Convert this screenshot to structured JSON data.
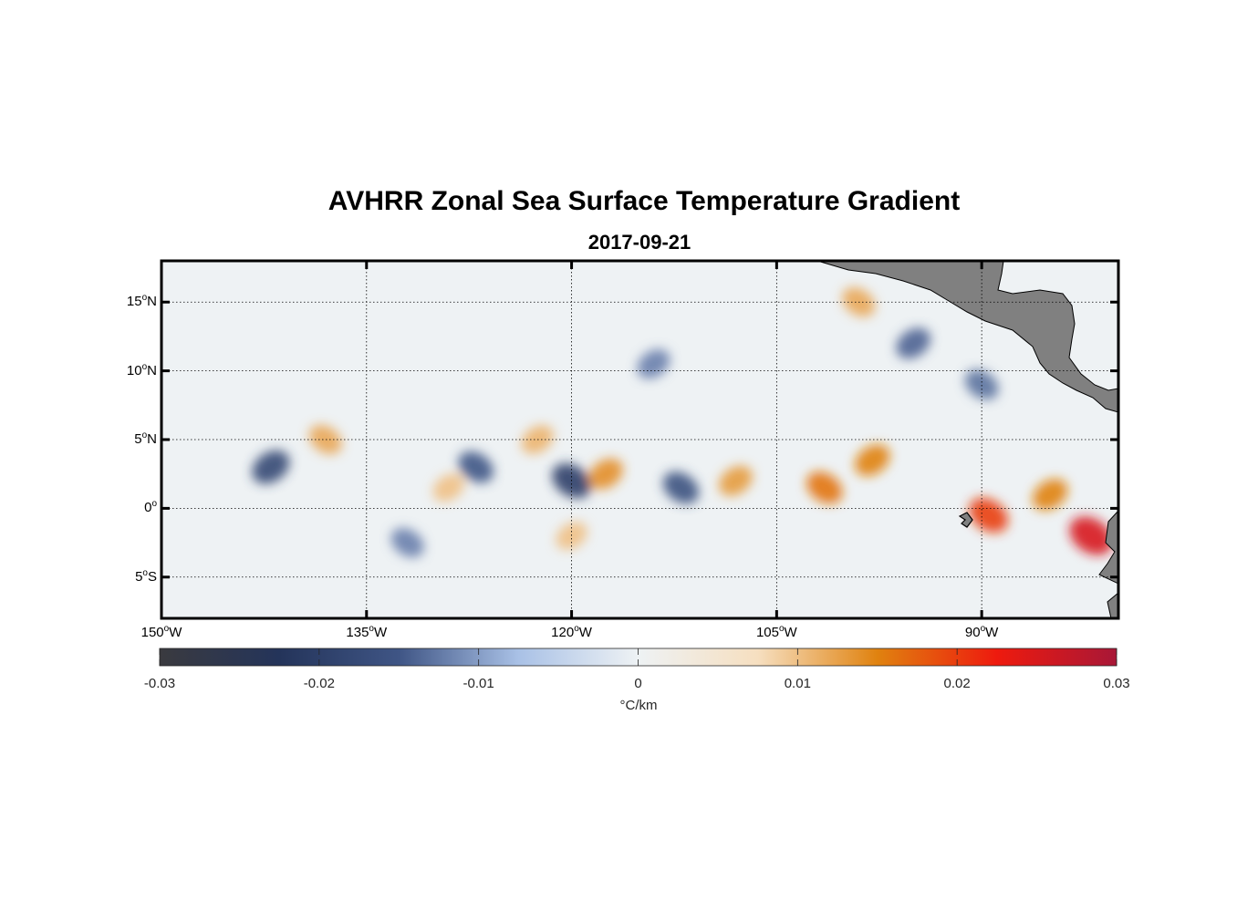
{
  "chart_data": {
    "type": "heatmap",
    "title": "AVHRR Zonal Sea Surface Temperature Gradient",
    "subtitle": "2017-09-21",
    "x_axis": {
      "range": [
        -150,
        -80
      ],
      "ticks": [
        {
          "value": -150,
          "deg": "150",
          "hemi": "W"
        },
        {
          "value": -135,
          "deg": "135",
          "hemi": "W"
        },
        {
          "value": -120,
          "deg": "120",
          "hemi": "W"
        },
        {
          "value": -105,
          "deg": "105",
          "hemi": "W"
        },
        {
          "value": -90,
          "deg": "90",
          "hemi": "W"
        }
      ]
    },
    "y_axis": {
      "range": [
        -8,
        18
      ],
      "ticks": [
        {
          "value": 15,
          "deg": "15",
          "hemi": "N"
        },
        {
          "value": 10,
          "deg": "10",
          "hemi": "N"
        },
        {
          "value": 5,
          "deg": "5",
          "hemi": "N"
        },
        {
          "value": 0,
          "deg": "0",
          "hemi": ""
        },
        {
          "value": -5,
          "deg": "5",
          "hemi": "S"
        }
      ]
    },
    "grid": true,
    "colorbar": {
      "range": [
        -0.03,
        0.03
      ],
      "tick_values": [
        -0.03,
        -0.02,
        -0.01,
        0,
        0.01,
        0.02,
        0.03
      ],
      "tick_labels": [
        "-0.03",
        "-0.02",
        "-0.01",
        "0",
        "0.01",
        "0.02",
        "0.03"
      ],
      "unit": "°C/km",
      "colors": [
        "#3a3a3f",
        "#24345a",
        "#3f5585",
        "#a9c1e6",
        "#eef2f4",
        "#f6dfc0",
        "#e0820f",
        "#ee1a0e",
        "#a81737"
      ]
    },
    "land_color": "#808080",
    "features": [
      {
        "lon": -142,
        "lat": 3,
        "value": -0.018
      },
      {
        "lon": -138,
        "lat": 5,
        "value": 0.012
      },
      {
        "lon": -129,
        "lat": 1.5,
        "value": 0.01
      },
      {
        "lon": -127,
        "lat": 3,
        "value": -0.015
      },
      {
        "lon": -122.5,
        "lat": 5,
        "value": 0.011
      },
      {
        "lon": -120,
        "lat": 2,
        "value": -0.02
      },
      {
        "lon": -117.5,
        "lat": 2.5,
        "value": 0.014
      },
      {
        "lon": -112,
        "lat": 1.5,
        "value": -0.016
      },
      {
        "lon": -108,
        "lat": 2,
        "value": 0.013
      },
      {
        "lon": -101.5,
        "lat": 1.5,
        "value": 0.016
      },
      {
        "lon": -98,
        "lat": 3.5,
        "value": 0.015
      },
      {
        "lon": -89.5,
        "lat": -0.5,
        "value": 0.02
      },
      {
        "lon": -85,
        "lat": 1,
        "value": 0.015
      },
      {
        "lon": -82,
        "lat": -2,
        "value": 0.025
      },
      {
        "lon": -120,
        "lat": -2,
        "value": 0.01
      },
      {
        "lon": -132,
        "lat": -2.5,
        "value": -0.012
      },
      {
        "lon": -114,
        "lat": 10.5,
        "value": -0.012
      },
      {
        "lon": -99,
        "lat": 15,
        "value": 0.012
      },
      {
        "lon": -95,
        "lat": 12,
        "value": -0.014
      },
      {
        "lon": -90,
        "lat": 9,
        "value": -0.013
      }
    ]
  }
}
